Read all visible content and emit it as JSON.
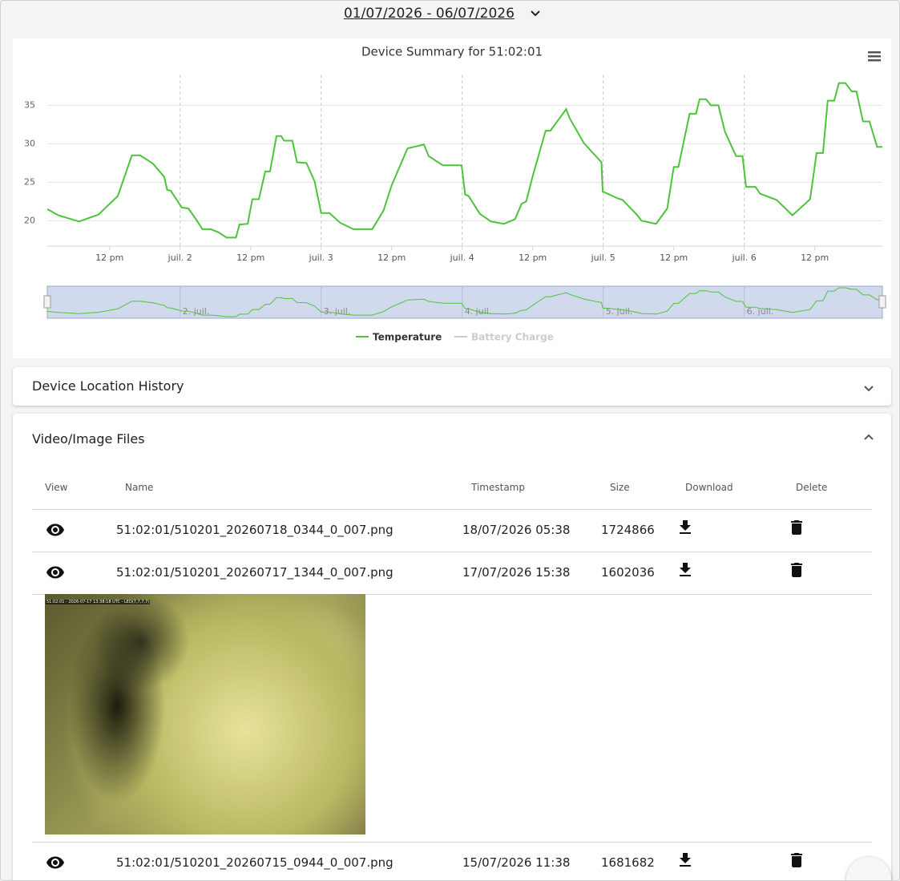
{
  "header": {
    "date_range": "01/07/2026 - 06/07/2026"
  },
  "chart_data": {
    "type": "line",
    "title": "Device Summary for 51:02:01",
    "x": [
      1.4,
      3.3,
      6.8,
      10.1,
      13.4,
      15.8,
      17.2,
      19.4,
      21.3,
      21.8,
      22.4,
      24.3,
      25.4,
      26.7,
      27.8,
      29.2,
      30.5,
      31.9,
      33.5,
      34.1,
      35.5,
      36.3,
      37.4,
      38.5,
      39.3,
      40.4,
      41.2,
      41.7,
      43.1,
      43.9,
      45.5,
      46.9,
      48,
      49.4,
      51.3,
      53.5,
      56.7,
      58.6,
      60,
      62.7,
      65.5,
      66.3,
      68.7,
      71.9,
      72.5,
      73.1,
      75,
      76.9,
      79.1,
      81,
      82.1,
      82.9,
      84,
      86.2,
      87,
      89.7,
      90.3,
      92.7,
      95.7,
      95.9,
      98.5,
      99.3,
      101.7,
      102.5,
      105,
      106.9,
      108,
      108.8,
      110.7,
      111.8,
      112.4,
      113.5,
      114.3,
      115.6,
      116.7,
      118.6,
      119.7,
      120.3,
      121.9,
      122.7,
      125.5,
      128.2,
      131.2,
      132.3,
      133.4,
      134.2,
      135.3,
      136.1,
      137.2,
      138.3,
      139.1,
      140.2,
      141.3,
      142.6,
      143.5
    ],
    "series": [
      {
        "name": "Temperature",
        "color": "#4cc43a",
        "values": [
          21.5,
          20.7,
          19.9,
          20.8,
          23.2,
          28.5,
          28.5,
          27.4,
          25.7,
          24,
          23.9,
          21.7,
          21.6,
          20.2,
          18.9,
          18.9,
          18.5,
          17.8,
          17.8,
          19.5,
          19.6,
          22.8,
          22.8,
          26.4,
          26.4,
          31,
          31,
          30.4,
          30.4,
          27.6,
          27.5,
          25.1,
          21,
          21,
          19.7,
          18.9,
          18.9,
          21.3,
          24.6,
          29.4,
          29.9,
          28.4,
          27.2,
          27.2,
          23.4,
          23.2,
          20.9,
          19.9,
          19.6,
          20.2,
          22.2,
          22.5,
          25.8,
          31.7,
          31.7,
          34.5,
          33.3,
          30.1,
          27.6,
          23.8,
          22.9,
          22.7,
          20.8,
          20,
          19.6,
          21.6,
          27,
          27,
          33.9,
          33.9,
          35.8,
          35.8,
          35,
          35,
          31.6,
          28.4,
          28.4,
          24.4,
          24.4,
          23.5,
          22.7,
          20.7,
          22.8,
          28.8,
          28.8,
          35.6,
          35.6,
          37.9,
          37.9,
          36.8,
          36.8,
          32.9,
          32.9,
          29.6,
          29.6
        ]
      },
      {
        "name": "Battery Charge",
        "color": "#cccccc",
        "visible": false
      }
    ],
    "xlim": [
      1.4,
      143.5
    ],
    "ylim": [
      16.7,
      39
    ],
    "yticks": [
      20,
      25,
      30,
      35
    ],
    "xticks": [
      {
        "value": 12,
        "label": "12 pm"
      },
      {
        "value": 24,
        "label": "juil. 2"
      },
      {
        "value": 36,
        "label": "12 pm"
      },
      {
        "value": 48,
        "label": "juil. 3"
      },
      {
        "value": 60,
        "label": "12 pm"
      },
      {
        "value": 72,
        "label": "juil. 4"
      },
      {
        "value": 84,
        "label": "12 pm"
      },
      {
        "value": 96,
        "label": "juil. 5"
      },
      {
        "value": 108,
        "label": "12 pm"
      },
      {
        "value": 120,
        "label": "juil. 6"
      },
      {
        "value": 132,
        "label": "12 pm"
      }
    ],
    "xgrid": [
      24,
      48,
      72,
      96,
      120
    ],
    "navigator_ticks": [
      {
        "value": 24,
        "label": "2. juil."
      },
      {
        "value": 48,
        "label": "3. juil."
      },
      {
        "value": 72,
        "label": "4. juil."
      },
      {
        "value": 96,
        "label": "5. juil."
      },
      {
        "value": 120,
        "label": "6. juil."
      }
    ],
    "grid": true
  },
  "panels": {
    "location": {
      "title": "Device Location History"
    },
    "files": {
      "title": "Video/Image Files",
      "columns": [
        "View",
        "Name",
        "Timestamp",
        "Size",
        "Download",
        "Delete"
      ],
      "rows": [
        {
          "name": "51:02:01/510201_20260718_0344_0_007.png",
          "timestamp": "18/07/2026 05:38",
          "size": 1724866
        },
        {
          "name": "51:02:01/510201_20260717_1344_0_007.png",
          "timestamp": "17/07/2026 15:38",
          "size": 1602036,
          "preview": {
            "caption": "51:02:01 - 2026-07-17 13:38:18 UTC - LED(7,7,7,7)"
          }
        },
        {
          "name": "51:02:01/510201_20260715_0944_0_007.png",
          "timestamp": "15/07/2026 11:38",
          "size": 1681682
        }
      ]
    }
  }
}
